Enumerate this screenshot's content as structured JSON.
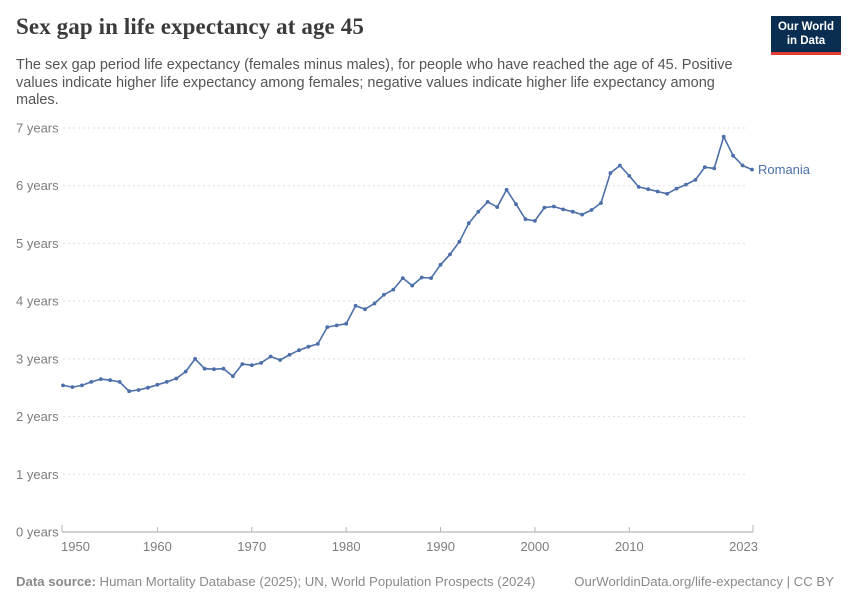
{
  "header": {
    "title": "Sex gap in life expectancy at age 45",
    "subtitle": "The sex gap period life expectancy (females minus males), for people who have reached the age of 45. Positive values indicate higher life expectancy among females; negative values indicate higher life expectancy among males.",
    "logo": {
      "line1": "Our World",
      "line2": "in Data"
    }
  },
  "footer": {
    "source_label": "Data source:",
    "source_text": " Human Mortality Database (2025); UN, World Population Prospects (2024)",
    "link_text": "OurWorldinData.org/life-expectancy | CC BY"
  },
  "colors": {
    "line": "#4c6ea9",
    "grid": "#dddddd",
    "axis": "#a5a5a5",
    "tick": "#b5b5b5",
    "tick_label": "#7d7d7d",
    "logo_bg": "#0a2e52",
    "logo_stripe": "#e23d33"
  },
  "chart_data": {
    "type": "line",
    "title": "Sex gap in life expectancy at age 45",
    "xlabel": "",
    "ylabel": "years",
    "xlim": [
      1950,
      2023
    ],
    "ylim": [
      0,
      7
    ],
    "grid": "horizontal-dashed",
    "legend_position": "end-of-line-label",
    "x_ticks": [
      1950,
      1960,
      1970,
      1980,
      1990,
      2000,
      2010,
      2023
    ],
    "y_ticks": [
      {
        "value": 0,
        "label": "0 years"
      },
      {
        "value": 1,
        "label": "1 years"
      },
      {
        "value": 2,
        "label": "2 years"
      },
      {
        "value": 3,
        "label": "3 years"
      },
      {
        "value": 4,
        "label": "4 years"
      },
      {
        "value": 5,
        "label": "5 years"
      },
      {
        "value": 6,
        "label": "6 years"
      },
      {
        "value": 7,
        "label": "7 years"
      }
    ],
    "series": [
      {
        "name": "Romania",
        "color": "#4c6ea9",
        "years": [
          1950,
          1951,
          1952,
          1953,
          1954,
          1955,
          1956,
          1957,
          1958,
          1959,
          1960,
          1961,
          1962,
          1963,
          1964,
          1965,
          1966,
          1967,
          1968,
          1969,
          1970,
          1971,
          1972,
          1973,
          1974,
          1975,
          1976,
          1977,
          1978,
          1979,
          1980,
          1981,
          1982,
          1983,
          1984,
          1985,
          1986,
          1987,
          1988,
          1989,
          1990,
          1991,
          1992,
          1993,
          1994,
          1995,
          1996,
          1997,
          1998,
          1999,
          2000,
          2001,
          2002,
          2003,
          2004,
          2005,
          2006,
          2007,
          2008,
          2009,
          2010,
          2011,
          2012,
          2013,
          2014,
          2015,
          2016,
          2017,
          2018,
          2019,
          2020,
          2021,
          2022,
          2023
        ],
        "values": [
          2.54,
          2.51,
          2.54,
          2.6,
          2.65,
          2.63,
          2.6,
          2.44,
          2.46,
          2.5,
          2.55,
          2.6,
          2.66,
          2.78,
          3.0,
          2.83,
          2.82,
          2.83,
          2.7,
          2.91,
          2.89,
          2.93,
          3.04,
          2.98,
          3.07,
          3.15,
          3.21,
          3.26,
          3.55,
          3.58,
          3.61,
          3.92,
          3.86,
          3.96,
          4.11,
          4.2,
          4.4,
          4.27,
          4.41,
          4.4,
          4.63,
          4.81,
          5.03,
          5.35,
          5.55,
          5.72,
          5.63,
          5.93,
          5.68,
          5.42,
          5.39,
          5.62,
          5.64,
          5.59,
          5.55,
          5.5,
          5.58,
          5.7,
          6.22,
          6.35,
          6.17,
          5.98,
          5.94,
          5.9,
          5.86,
          5.95,
          6.02,
          6.1,
          6.32,
          6.3,
          6.85,
          6.52,
          6.35,
          6.28
        ]
      }
    ]
  }
}
